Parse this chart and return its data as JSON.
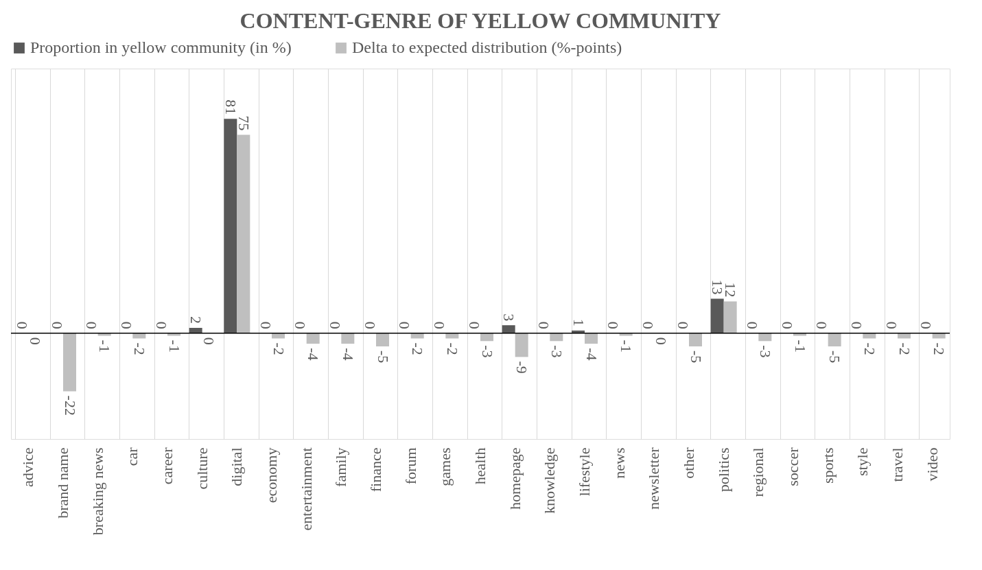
{
  "chart_data": {
    "type": "bar",
    "title": "CONTENT-GENRE OF YELLOW COMMUNITY",
    "categories": [
      "advice",
      "brand name",
      "breaking news",
      "car",
      "career",
      "culture",
      "digital",
      "economy",
      "entertainment",
      "family",
      "finance",
      "forum",
      "games",
      "health",
      "homepage",
      "knowledge",
      "lifestyle",
      "news",
      "newsletter",
      "other",
      "politics",
      "regional",
      "soccer",
      "sports",
      "style",
      "travel",
      "video"
    ],
    "series": [
      {
        "name": "Proportion in yellow community (in %)",
        "color": "#595959",
        "values": [
          0,
          0,
          0,
          0,
          0,
          2,
          81,
          0,
          0,
          0,
          0,
          0,
          0,
          0,
          3,
          0,
          1,
          0,
          0,
          0,
          13,
          0,
          0,
          0,
          0,
          0,
          0
        ]
      },
      {
        "name": "Delta to expected distribution (%-points)",
        "color": "#bfbfbf",
        "values": [
          0,
          -22,
          -1,
          -2,
          -1,
          0,
          75,
          -2,
          -4,
          -4,
          -5,
          -2,
          -2,
          -3,
          -9,
          -3,
          -4,
          -1,
          0,
          -5,
          12,
          -3,
          -1,
          -5,
          -2,
          -2,
          -2
        ]
      }
    ],
    "ylim": [
      -40,
      100
    ],
    "tick_labels": "x",
    "grid": "x",
    "legend": "top",
    "data_labels": true
  }
}
